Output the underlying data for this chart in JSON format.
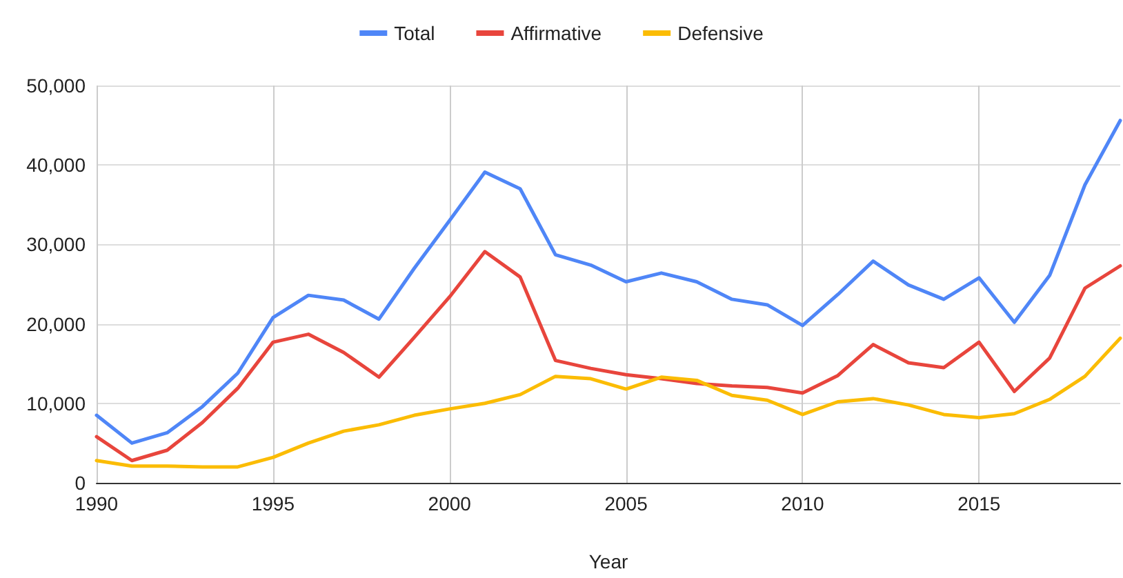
{
  "chart_data": {
    "type": "line",
    "xlabel": "Year",
    "legend": "top",
    "grid": true,
    "marker": "none",
    "line_style": "solid",
    "x": [
      1990,
      1991,
      1992,
      1993,
      1994,
      1995,
      1996,
      1997,
      1998,
      1999,
      2000,
      2001,
      2002,
      2003,
      2004,
      2005,
      2006,
      2007,
      2008,
      2009,
      2010,
      2011,
      2012,
      2013,
      2014,
      2015,
      2016,
      2017,
      2018,
      2019
    ],
    "xlim": [
      1990,
      2019
    ],
    "xticks": [
      1990,
      1995,
      2000,
      2005,
      2010,
      2015
    ],
    "ylim": [
      0,
      50000
    ],
    "yticks": [
      {
        "value": 0,
        "label": "0"
      },
      {
        "value": 10000,
        "label": "10,000"
      },
      {
        "value": 20000,
        "label": "20,000"
      },
      {
        "value": 30000,
        "label": "30,000"
      },
      {
        "value": 40000,
        "label": "40,000"
      },
      {
        "value": 50000,
        "label": "50,000"
      }
    ],
    "series": [
      {
        "name": "Total",
        "color": "#4f86f7",
        "values": [
          8500,
          5000,
          6300,
          9600,
          13800,
          20800,
          23600,
          23000,
          20600,
          27000,
          33000,
          39100,
          37000,
          28700,
          27400,
          25300,
          26400,
          25300,
          23100,
          22400,
          19800,
          23700,
          27900,
          24900,
          23100,
          25800,
          20200,
          26100,
          37500,
          45600
        ]
      },
      {
        "name": "Affirmative",
        "color": "#e8453c",
        "values": [
          5800,
          2800,
          4100,
          7600,
          11900,
          17700,
          18700,
          16400,
          13300,
          18300,
          23400,
          29100,
          25900,
          15400,
          14400,
          13600,
          13100,
          12500,
          12200,
          12000,
          11300,
          13500,
          17400,
          15100,
          14500,
          17700,
          11500,
          15700,
          24500,
          27300
        ]
      },
      {
        "name": "Defensive",
        "color": "#fbbc04",
        "values": [
          2800,
          2100,
          2100,
          2000,
          2000,
          3200,
          5000,
          6500,
          7300,
          8500,
          9300,
          10000,
          11100,
          13400,
          13100,
          11800,
          13300,
          12900,
          11000,
          10400,
          8600,
          10200,
          10600,
          9800,
          8600,
          8200,
          8700,
          10500,
          13400,
          18200
        ]
      }
    ]
  }
}
